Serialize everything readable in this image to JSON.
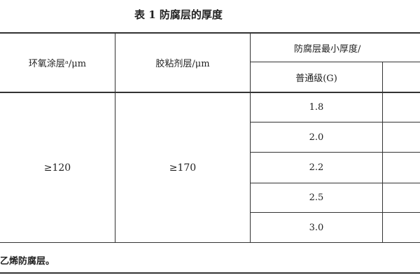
{
  "title": "表 1  防腐层的厚度",
  "headers": {
    "epoxy": "环氧涂层ᵃ/μm",
    "adhesive": "胶粘剂层/μm",
    "min_thickness": "防腐层最小厚度/",
    "normal_grade": "普通级(G)"
  },
  "body": {
    "epoxy_value": "≥120",
    "adhesive_value": "≥170",
    "normal_values": [
      "1.8",
      "2.0",
      "2.2",
      "2.5",
      "3.0"
    ]
  },
  "footnote": "乙烯防腐层。"
}
